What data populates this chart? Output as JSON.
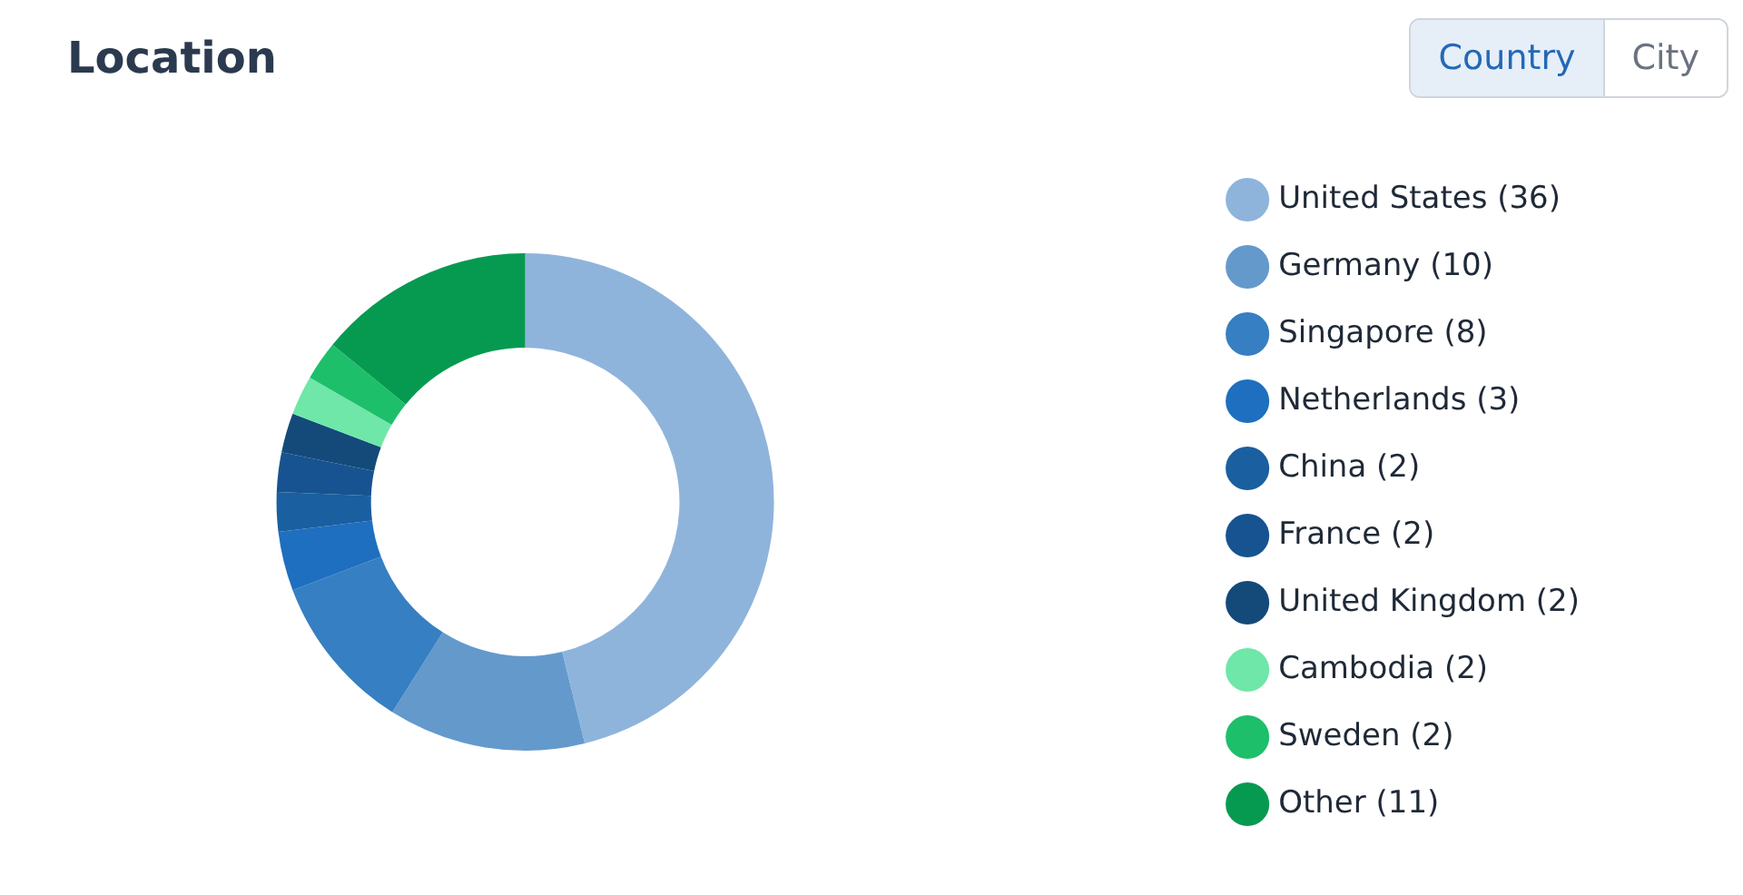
{
  "chart_data": {
    "type": "donut",
    "title": "Location",
    "annotations": [
      "Country",
      "City"
    ],
    "categories": [
      "United States (36)",
      "Germany (10)",
      "Singapore (8)",
      "Netherlands (3)",
      "China (2)",
      "France (2)",
      "United Kingdom (2)",
      "Cambodia (2)",
      "Sweden (2)",
      "Other (11)"
    ],
    "values": [
      36,
      10,
      8,
      3,
      2,
      2,
      2,
      2,
      2,
      11
    ],
    "colors": [
      "#8fb4db",
      "#6499cc",
      "#357fc2",
      "#1e6fbf",
      "#1a5fa0",
      "#175390",
      "#134a7a",
      "#6ee7a8",
      "#1dbf6b",
      "#069a50"
    ],
    "legend": "right"
  }
}
